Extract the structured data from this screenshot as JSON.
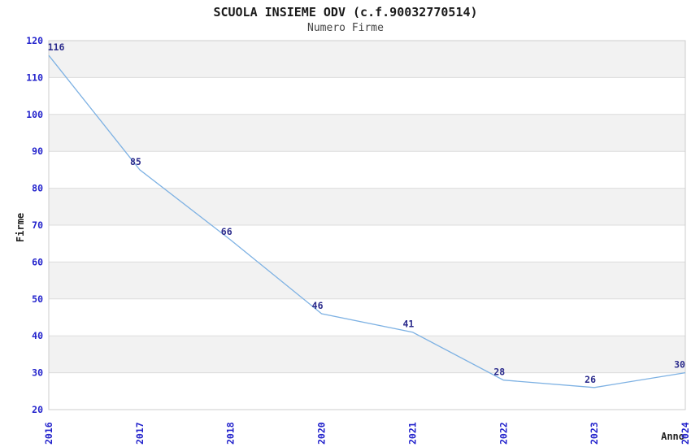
{
  "chart_data": {
    "type": "line",
    "title": "SCUOLA INSIEME ODV (c.f.90032770514)",
    "subtitle": "Numero Firme",
    "xlabel": "Anno",
    "ylabel": "Firme",
    "categories": [
      "2016",
      "2017",
      "2018",
      "2020",
      "2021",
      "2022",
      "2023",
      "2024"
    ],
    "values": [
      116,
      85,
      66,
      46,
      41,
      28,
      26,
      30
    ],
    "ylim": [
      20,
      120
    ],
    "ytick_step": 10,
    "yticks": [
      20,
      30,
      40,
      50,
      60,
      70,
      80,
      90,
      100,
      110,
      120
    ],
    "grid": "horizontal gridlines with alternating shaded bands",
    "legend": "none",
    "colors": {
      "line": "#7db1e3",
      "data_label": "#2b2b8c",
      "tick_label": "#2323cc",
      "band": "#f2f2f2",
      "gridline": "#dcdcdc",
      "border": "#cccccc",
      "title": "#1a1a1a",
      "subtitle": "#444444",
      "axis_title": "#222222"
    }
  }
}
